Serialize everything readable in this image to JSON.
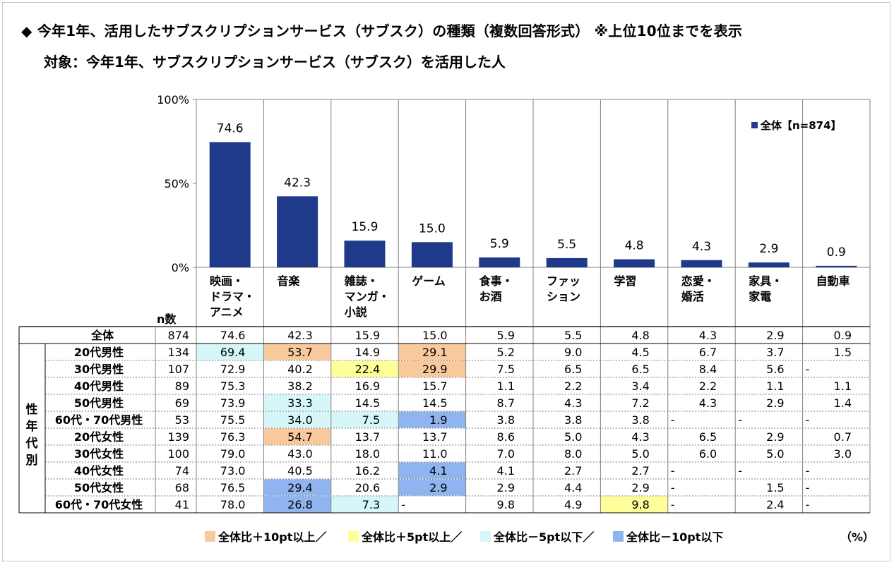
{
  "title": "◆ 今年1年、活用したサブスクリプションサービス（サブスク）の種類（複数回答形式） ※上位10位までを表示",
  "subtitle": "対象：今年1年、サブスクリプションサービス（サブスク）を活用した人",
  "colors": {
    "bar": "#1f3a8a",
    "plus10": "#f9c99e",
    "plus5": "#ffff99",
    "minus5": "#d6f7f9",
    "minus10": "#8fb4ef"
  },
  "chart_data": {
    "type": "bar",
    "categories": [
      [
        "映画・",
        "ドラマ・",
        "アニメ"
      ],
      [
        "音楽"
      ],
      [
        "雑誌・",
        "マンガ・",
        "小説"
      ],
      [
        "ゲーム"
      ],
      [
        "食事・",
        "お酒"
      ],
      [
        "ファッ",
        "ション"
      ],
      [
        "学習"
      ],
      [
        "恋愛・",
        "婚活"
      ],
      [
        "家具・",
        "家電"
      ],
      [
        "自動車"
      ]
    ],
    "series": [
      {
        "name": "全体【n=874】",
        "values": [
          74.6,
          42.3,
          15.9,
          15.0,
          5.9,
          5.5,
          4.8,
          4.3,
          2.9,
          0.9
        ]
      }
    ],
    "value_labels": [
      "74.6",
      "42.3",
      "15.9",
      "15.0",
      "5.9",
      "5.5",
      "4.8",
      "4.3",
      "2.9",
      "0.9"
    ],
    "ylim": [
      0,
      100
    ],
    "yticks": [
      "0%",
      "50%",
      "100%"
    ],
    "legend": "top-right"
  },
  "table": {
    "n_header": "n数",
    "side_label": [
      "性",
      "年",
      "代",
      "別"
    ],
    "rows": [
      {
        "label": "全体",
        "n": "874",
        "values": [
          "74.6",
          "42.3",
          "15.9",
          "15.0",
          "5.9",
          "5.5",
          "4.8",
          "4.3",
          "2.9",
          "0.9"
        ],
        "hl": [
          0,
          0,
          0,
          0,
          0,
          0,
          0,
          0,
          0,
          0
        ]
      },
      {
        "label": "20代男性",
        "n": "134",
        "values": [
          "69.4",
          "53.7",
          "14.9",
          "29.1",
          "5.2",
          "9.0",
          "4.5",
          "6.7",
          "3.7",
          "1.5"
        ],
        "hl": [
          3,
          1,
          0,
          1,
          0,
          0,
          0,
          0,
          0,
          0
        ]
      },
      {
        "label": "30代男性",
        "n": "107",
        "values": [
          "72.9",
          "40.2",
          "22.4",
          "29.9",
          "7.5",
          "6.5",
          "6.5",
          "8.4",
          "5.6",
          "-"
        ],
        "hl": [
          0,
          0,
          2,
          1,
          0,
          0,
          0,
          0,
          0,
          0
        ]
      },
      {
        "label": "40代男性",
        "n": "89",
        "values": [
          "75.3",
          "38.2",
          "16.9",
          "15.7",
          "1.1",
          "2.2",
          "3.4",
          "2.2",
          "1.1",
          "1.1"
        ],
        "hl": [
          0,
          0,
          0,
          0,
          0,
          0,
          0,
          0,
          0,
          0
        ]
      },
      {
        "label": "50代男性",
        "n": "69",
        "values": [
          "73.9",
          "33.3",
          "14.5",
          "14.5",
          "8.7",
          "4.3",
          "7.2",
          "4.3",
          "2.9",
          "1.4"
        ],
        "hl": [
          0,
          3,
          0,
          0,
          0,
          0,
          0,
          0,
          0,
          0
        ]
      },
      {
        "label": "60代・70代男性",
        "n": "53",
        "values": [
          "75.5",
          "34.0",
          "7.5",
          "1.9",
          "3.8",
          "3.8",
          "3.8",
          "-",
          "-",
          "-"
        ],
        "hl": [
          0,
          3,
          3,
          4,
          0,
          0,
          0,
          0,
          0,
          0
        ]
      },
      {
        "label": "20代女性",
        "n": "139",
        "values": [
          "76.3",
          "54.7",
          "13.7",
          "13.7",
          "8.6",
          "5.0",
          "4.3",
          "6.5",
          "2.9",
          "0.7"
        ],
        "hl": [
          0,
          1,
          0,
          0,
          0,
          0,
          0,
          0,
          0,
          0
        ]
      },
      {
        "label": "30代女性",
        "n": "100",
        "values": [
          "79.0",
          "43.0",
          "18.0",
          "11.0",
          "7.0",
          "8.0",
          "5.0",
          "6.0",
          "5.0",
          "3.0"
        ],
        "hl": [
          0,
          0,
          0,
          0,
          0,
          0,
          0,
          0,
          0,
          0
        ]
      },
      {
        "label": "40代女性",
        "n": "74",
        "values": [
          "73.0",
          "40.5",
          "16.2",
          "4.1",
          "4.1",
          "2.7",
          "2.7",
          "-",
          "-",
          "-"
        ],
        "hl": [
          0,
          0,
          0,
          4,
          0,
          0,
          0,
          0,
          0,
          0
        ]
      },
      {
        "label": "50代女性",
        "n": "68",
        "values": [
          "76.5",
          "29.4",
          "20.6",
          "2.9",
          "2.9",
          "4.4",
          "2.9",
          "-",
          "1.5",
          "-"
        ],
        "hl": [
          0,
          4,
          0,
          4,
          0,
          0,
          0,
          0,
          0,
          0
        ]
      },
      {
        "label": "60代・70代女性",
        "n": "41",
        "values": [
          "78.0",
          "26.8",
          "7.3",
          "-",
          "9.8",
          "4.9",
          "9.8",
          "-",
          "2.4",
          "-"
        ],
        "hl": [
          0,
          4,
          3,
          0,
          0,
          0,
          2,
          0,
          0,
          0
        ]
      }
    ]
  },
  "legend_items": [
    {
      "label": "全体比＋10pt以上／",
      "color": "#f9c99e"
    },
    {
      "label": "全体比＋5pt以上／",
      "color": "#ffff99"
    },
    {
      "label": "全体比－5pt以下／",
      "color": "#d6f7f9"
    },
    {
      "label": "全体比－10pt以下",
      "color": "#8fb4ef"
    }
  ],
  "unit": "（%）"
}
